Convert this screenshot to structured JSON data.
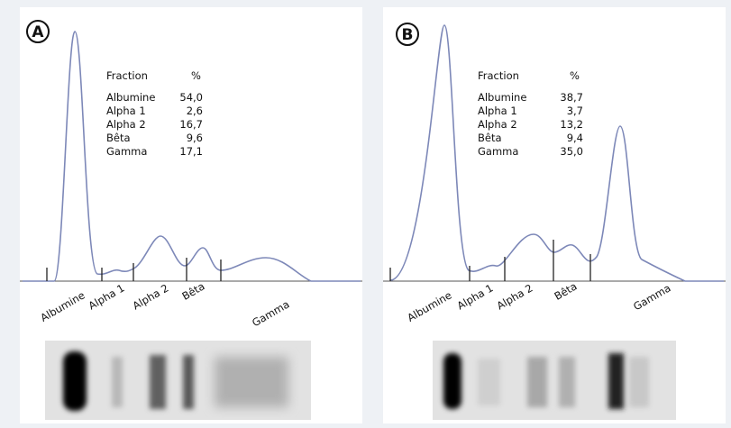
{
  "panels": [
    {
      "label": "A",
      "table": {
        "header": [
          "Fraction",
          "%"
        ],
        "rows": [
          [
            "Albumine",
            "54,0"
          ],
          [
            "Alpha 1",
            "2,6"
          ],
          [
            "Alpha 2",
            "16,7"
          ],
          [
            "Bêta",
            "9,6"
          ],
          [
            "Gamma",
            "17,1"
          ]
        ]
      },
      "axis_labels": [
        "Albumine",
        "Alpha 1",
        "Alpha 2",
        "Bêta",
        "Gamma"
      ]
    },
    {
      "label": "B",
      "table": {
        "header": [
          "Fraction",
          "%"
        ],
        "rows": [
          [
            "Albumine",
            "38,7"
          ],
          [
            "Alpha 1",
            "3,7"
          ],
          [
            "Alpha 2",
            "13,2"
          ],
          [
            "Bêta",
            "9,4"
          ],
          [
            "Gamma",
            "35,0"
          ]
        ]
      },
      "axis_labels": [
        "Albumine",
        "Alpha 1",
        "Alpha 2",
        "Bêta",
        "Gamma"
      ]
    }
  ]
}
